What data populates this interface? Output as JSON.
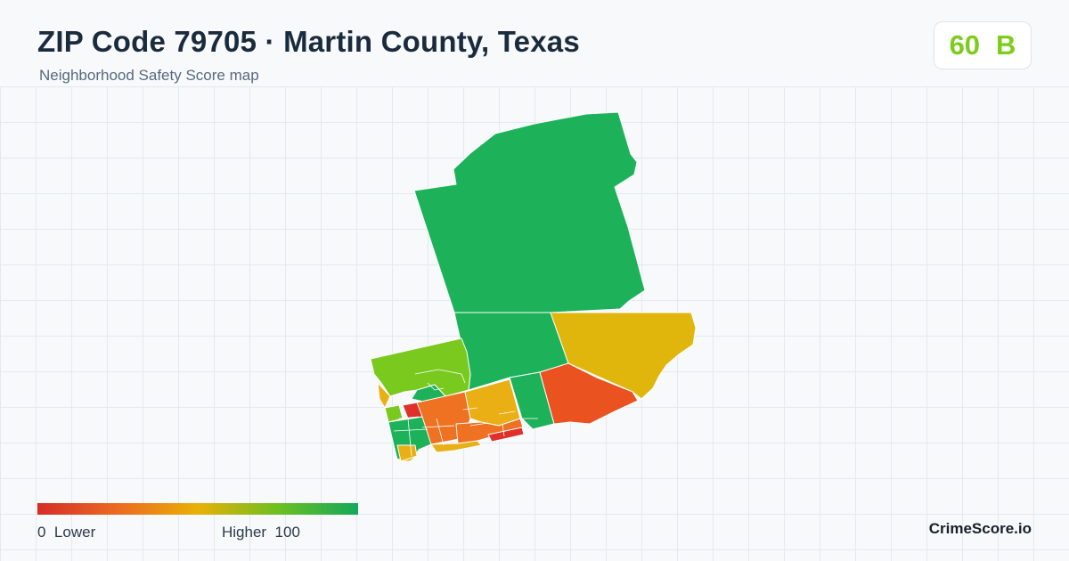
{
  "header": {
    "title": "ZIP Code 79705 · Martin County, Texas",
    "subtitle": "Neighborhood Safety Score map"
  },
  "score": {
    "value": "60",
    "grade": "B",
    "color": "#7ccc1c"
  },
  "legend": {
    "min_value": "0",
    "min_label": "Lower",
    "max_label": "Higher",
    "max_value": "100",
    "colors": [
      "#d42d28",
      "#ec6a20",
      "#e9b008",
      "#6cc020",
      "#13a85a"
    ]
  },
  "brand": "CrimeScore.io",
  "map": {
    "region_colors": {
      "north": "#1db25a",
      "center": "#1db25a",
      "east": "#e0b60c",
      "west": "#7ac91f",
      "southeast": "#ea521f",
      "south_central": "#e9af14",
      "south_green": "#1db25a",
      "southwest_orange": "#ef7122",
      "red": "#e0302a"
    }
  }
}
